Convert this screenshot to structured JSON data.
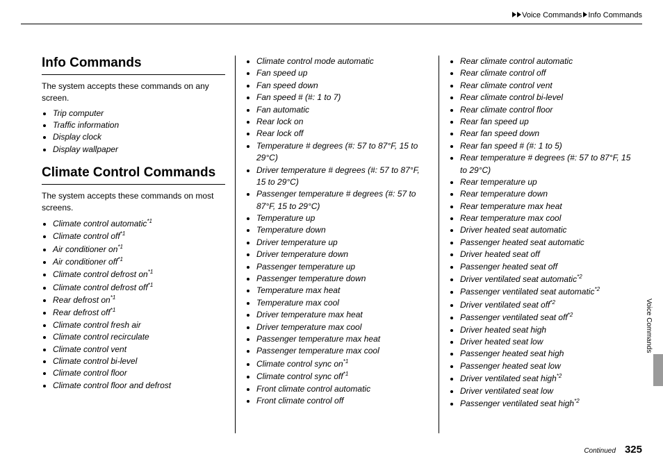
{
  "breadcrumb": {
    "a": "Voice Commands",
    "b": "Info Commands"
  },
  "section1": {
    "heading": "Info Commands",
    "intro": "The system accepts these commands on any screen."
  },
  "section2": {
    "heading": "Climate Control Commands",
    "intro": "The system accepts these commands on most screens."
  },
  "info_list": [
    "Trip computer",
    "Traffic information",
    "Display clock",
    "Display wallpaper"
  ],
  "climate_col1": [
    {
      "t": "Climate control automatic",
      "s": "*1"
    },
    {
      "t": "Climate control off",
      "s": "*1"
    },
    {
      "t": "Air conditioner on",
      "s": "*1"
    },
    {
      "t": "Air conditioner off",
      "s": "*1"
    },
    {
      "t": "Climate control defrost on",
      "s": "*1"
    },
    {
      "t": "Climate control defrost off",
      "s": "*1"
    },
    {
      "t": "Rear defrost on",
      "s": "*1"
    },
    {
      "t": "Rear defrost off",
      "s": "*1"
    },
    {
      "t": "Climate control fresh air",
      "s": ""
    },
    {
      "t": "Climate control recirculate",
      "s": ""
    },
    {
      "t": "Climate control vent",
      "s": ""
    },
    {
      "t": "Climate control bi-level",
      "s": ""
    },
    {
      "t": "Climate control floor",
      "s": ""
    },
    {
      "t": "Climate control floor and defrost",
      "s": ""
    }
  ],
  "climate_col2": [
    {
      "t": "Climate control mode automatic",
      "s": ""
    },
    {
      "t": "Fan speed up",
      "s": ""
    },
    {
      "t": "Fan speed down",
      "s": ""
    },
    {
      "t": "Fan speed # (#: 1 to 7)",
      "s": ""
    },
    {
      "t": "Fan automatic",
      "s": ""
    },
    {
      "t": "Rear lock on",
      "s": ""
    },
    {
      "t": "Rear lock off",
      "s": ""
    },
    {
      "t": "Temperature # degrees (#: 57 to 87°F, 15 to 29°C)",
      "s": ""
    },
    {
      "t": "Driver temperature # degrees (#: 57 to 87°F, 15 to 29°C)",
      "s": ""
    },
    {
      "t": "Passenger temperature # degrees (#: 57 to 87°F, 15 to 29°C)",
      "s": ""
    },
    {
      "t": "Temperature up",
      "s": ""
    },
    {
      "t": "Temperature down",
      "s": ""
    },
    {
      "t": "Driver temperature up",
      "s": ""
    },
    {
      "t": "Driver temperature down",
      "s": ""
    },
    {
      "t": "Passenger temperature up",
      "s": ""
    },
    {
      "t": "Passenger temperature down",
      "s": ""
    },
    {
      "t": "Temperature max heat",
      "s": ""
    },
    {
      "t": "Temperature max cool",
      "s": ""
    },
    {
      "t": "Driver temperature max heat",
      "s": ""
    },
    {
      "t": "Driver temperature max cool",
      "s": ""
    },
    {
      "t": "Passenger temperature max heat",
      "s": ""
    },
    {
      "t": "Passenger temperature max cool",
      "s": ""
    },
    {
      "t": "Climate control sync on",
      "s": "*1"
    },
    {
      "t": "Climate control sync off",
      "s": "*1"
    },
    {
      "t": "Front climate control automatic",
      "s": ""
    },
    {
      "t": "Front climate control off",
      "s": ""
    }
  ],
  "climate_col3": [
    {
      "t": "Rear climate control automatic",
      "s": ""
    },
    {
      "t": "Rear climate control off",
      "s": ""
    },
    {
      "t": "Rear climate control vent",
      "s": ""
    },
    {
      "t": "Rear climate control bi-level",
      "s": ""
    },
    {
      "t": "Rear climate control floor",
      "s": ""
    },
    {
      "t": "Rear fan speed up",
      "s": ""
    },
    {
      "t": "Rear fan speed down",
      "s": ""
    },
    {
      "t": "Rear fan speed # (#: 1 to 5)",
      "s": ""
    },
    {
      "t": "Rear temperature # degrees (#: 57 to 87°F, 15 to 29°C)",
      "s": ""
    },
    {
      "t": "Rear temperature up",
      "s": ""
    },
    {
      "t": "Rear temperature down",
      "s": ""
    },
    {
      "t": "Rear temperature max heat",
      "s": ""
    },
    {
      "t": "Rear temperature max cool",
      "s": ""
    },
    {
      "t": "Driver heated seat automatic",
      "s": ""
    },
    {
      "t": "Passenger heated seat automatic",
      "s": ""
    },
    {
      "t": "Driver heated seat off",
      "s": ""
    },
    {
      "t": "Passenger heated seat off",
      "s": ""
    },
    {
      "t": "Driver ventilated seat automatic",
      "s": "*2"
    },
    {
      "t": "Passenger ventilated seat automatic",
      "s": "*2"
    },
    {
      "t": "Driver ventilated seat off",
      "s": "*2"
    },
    {
      "t": "Passenger ventilated seat off",
      "s": "*2"
    },
    {
      "t": "Driver heated seat high",
      "s": ""
    },
    {
      "t": "Driver heated seat low",
      "s": ""
    },
    {
      "t": "Passenger heated seat high",
      "s": ""
    },
    {
      "t": "Passenger heated seat low",
      "s": ""
    },
    {
      "t": "Driver ventilated seat high",
      "s": "*2"
    },
    {
      "t": "Driver ventilated seat low",
      "s": ""
    },
    {
      "t": "Passenger ventilated seat high",
      "s": "*2"
    }
  ],
  "side_label": "Voice Commands",
  "footer": {
    "continued": "Continued",
    "page": "325"
  }
}
